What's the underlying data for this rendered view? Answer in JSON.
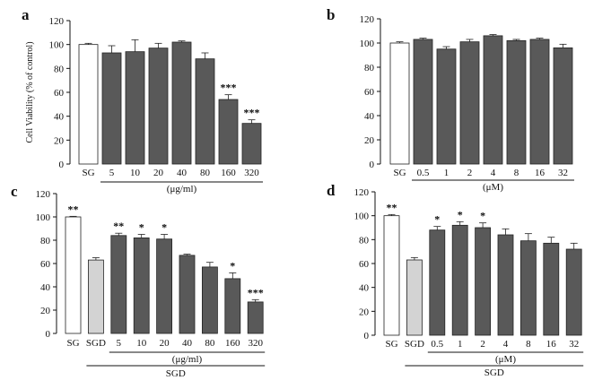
{
  "chart_data": [
    {
      "panel": "a",
      "type": "bar",
      "ylabel": "Cell Viability (% of control)",
      "ylim": [
        0,
        120
      ],
      "yticks": [
        0,
        20,
        40,
        60,
        80,
        100,
        120
      ],
      "categories": [
        "SG",
        "5",
        "10",
        "20",
        "40",
        "80",
        "160",
        "320"
      ],
      "values": [
        100,
        93,
        94,
        97,
        102,
        88,
        54,
        34
      ],
      "errors": [
        1,
        6,
        10,
        4,
        1,
        5,
        4,
        3
      ],
      "significance": [
        "",
        "",
        "",
        "",
        "",
        "",
        "***",
        "***"
      ],
      "bar_colors": [
        "#ffffff",
        "#595959",
        "#595959",
        "#595959",
        "#595959",
        "#595959",
        "#595959",
        "#595959"
      ],
      "group_labels": [
        {
          "text": "(μg/ml)",
          "from": 1,
          "to": 7
        }
      ]
    },
    {
      "panel": "b",
      "type": "bar",
      "ylabel": "",
      "ylim": [
        0,
        120
      ],
      "yticks": [
        0,
        20,
        40,
        60,
        80,
        100,
        120
      ],
      "categories": [
        "SG",
        "0.5",
        "1",
        "2",
        "4",
        "8",
        "16",
        "32"
      ],
      "values": [
        100,
        103,
        95,
        101,
        106,
        102,
        103,
        96
      ],
      "errors": [
        1,
        1,
        2,
        2,
        1,
        1,
        1,
        3
      ],
      "significance": [
        "",
        "",
        "",
        "",
        "",
        "",
        "",
        ""
      ],
      "bar_colors": [
        "#ffffff",
        "#595959",
        "#595959",
        "#595959",
        "#595959",
        "#595959",
        "#595959",
        "#595959"
      ],
      "group_labels": [
        {
          "text": "(μM)",
          "from": 1,
          "to": 7
        }
      ]
    },
    {
      "panel": "c",
      "type": "bar",
      "ylabel": "",
      "ylim": [
        0,
        120
      ],
      "yticks": [
        0,
        20,
        40,
        60,
        80,
        100,
        120
      ],
      "categories": [
        "SG",
        "SGD",
        "5",
        "10",
        "20",
        "40",
        "80",
        "160",
        "320"
      ],
      "values": [
        100,
        63,
        84,
        82,
        81,
        67,
        57,
        47,
        27
      ],
      "errors": [
        0.5,
        2,
        2,
        3,
        4,
        1,
        4,
        5,
        2
      ],
      "significance": [
        "**",
        "",
        "**",
        "*",
        "*",
        "",
        "",
        "*",
        "***"
      ],
      "bar_colors": [
        "#ffffff",
        "#d3d3d3",
        "#595959",
        "#595959",
        "#595959",
        "#595959",
        "#595959",
        "#595959",
        "#595959"
      ],
      "group_labels": [
        {
          "text": "(μg/ml)",
          "from": 2,
          "to": 8
        },
        {
          "text": "SGD",
          "from": 1,
          "to": 8
        }
      ]
    },
    {
      "panel": "d",
      "type": "bar",
      "ylabel": "",
      "ylim": [
        0,
        120
      ],
      "yticks": [
        0,
        20,
        40,
        60,
        80,
        100,
        120
      ],
      "categories": [
        "SG",
        "SGD",
        "0.5",
        "1",
        "2",
        "4",
        "8",
        "16",
        "32"
      ],
      "values": [
        100,
        63,
        88,
        92,
        90,
        84,
        79,
        77,
        72
      ],
      "errors": [
        1,
        2,
        3,
        3,
        4,
        5,
        6,
        5,
        5
      ],
      "significance": [
        "**",
        "",
        "*",
        "*",
        "*",
        "",
        "",
        "",
        ""
      ],
      "bar_colors": [
        "#ffffff",
        "#d3d3d3",
        "#595959",
        "#595959",
        "#595959",
        "#595959",
        "#595959",
        "#595959",
        "#595959"
      ],
      "group_labels": [
        {
          "text": "(μM)",
          "from": 2,
          "to": 8
        },
        {
          "text": "SGD",
          "from": 1,
          "to": 8
        }
      ]
    }
  ]
}
